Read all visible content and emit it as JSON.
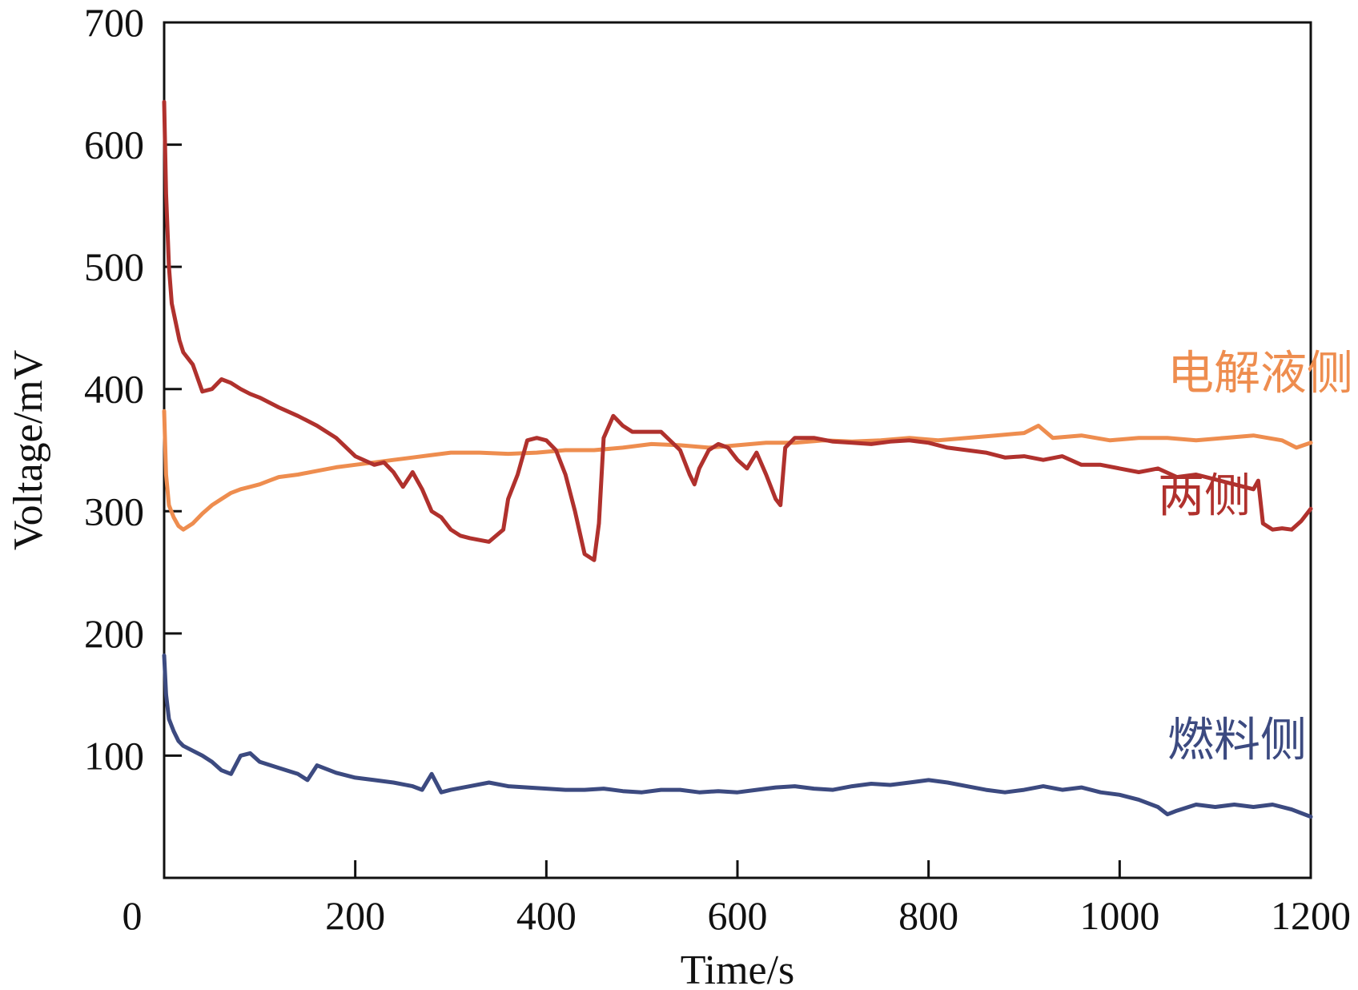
{
  "chart_data": {
    "type": "line",
    "title": "",
    "xlabel": "Time/s",
    "ylabel": "Voltage/mV",
    "xlim": [
      0,
      1200
    ],
    "ylim": [
      0,
      700
    ],
    "xticks": [
      0,
      200,
      400,
      600,
      800,
      1000,
      1200
    ],
    "yticks": [
      100,
      200,
      300,
      400,
      500,
      600,
      700
    ],
    "grid": false,
    "legend": "inline labels",
    "series": [
      {
        "name": "电解液侧",
        "color": "#ee8d4f",
        "label_at": [
          1050,
          400
        ],
        "x": [
          0,
          2,
          5,
          10,
          15,
          20,
          30,
          40,
          50,
          60,
          70,
          80,
          90,
          100,
          110,
          120,
          140,
          160,
          180,
          200,
          220,
          240,
          260,
          280,
          300,
          330,
          360,
          390,
          420,
          450,
          480,
          510,
          540,
          570,
          600,
          630,
          660,
          690,
          720,
          750,
          780,
          810,
          840,
          870,
          900,
          915,
          930,
          960,
          990,
          1020,
          1050,
          1080,
          1110,
          1140,
          1170,
          1185,
          1200
        ],
        "y": [
          382,
          330,
          305,
          295,
          288,
          285,
          290,
          298,
          305,
          310,
          315,
          318,
          320,
          322,
          325,
          328,
          330,
          333,
          336,
          338,
          340,
          342,
          344,
          346,
          348,
          348,
          347,
          348,
          350,
          350,
          352,
          355,
          354,
          352,
          354,
          356,
          356,
          358,
          357,
          358,
          360,
          358,
          360,
          362,
          364,
          370,
          360,
          362,
          358,
          360,
          360,
          358,
          360,
          362,
          358,
          352,
          356
        ]
      },
      {
        "name": "两侧",
        "color": "#b0312d",
        "label_at": [
          1040,
          300
        ],
        "x": [
          0,
          2,
          5,
          8,
          12,
          16,
          20,
          30,
          40,
          50,
          60,
          70,
          80,
          90,
          100,
          120,
          140,
          160,
          180,
          200,
          220,
          230,
          240,
          250,
          260,
          270,
          280,
          290,
          300,
          310,
          320,
          340,
          355,
          360,
          370,
          380,
          390,
          400,
          410,
          420,
          430,
          440,
          450,
          455,
          460,
          470,
          480,
          490,
          500,
          520,
          540,
          550,
          555,
          560,
          570,
          580,
          590,
          600,
          610,
          620,
          630,
          640,
          645,
          650,
          660,
          680,
          700,
          720,
          740,
          760,
          780,
          800,
          820,
          840,
          860,
          880,
          900,
          920,
          940,
          960,
          980,
          1000,
          1020,
          1040,
          1060,
          1080,
          1100,
          1120,
          1140,
          1145,
          1150,
          1160,
          1170,
          1180,
          1190,
          1200
        ],
        "y": [
          635,
          560,
          500,
          470,
          455,
          440,
          430,
          420,
          398,
          400,
          408,
          405,
          400,
          396,
          393,
          385,
          378,
          370,
          360,
          345,
          338,
          340,
          332,
          320,
          332,
          318,
          300,
          295,
          285,
          280,
          278,
          275,
          285,
          310,
          330,
          358,
          360,
          358,
          350,
          330,
          300,
          265,
          260,
          290,
          360,
          378,
          370,
          365,
          365,
          365,
          350,
          330,
          322,
          335,
          350,
          355,
          352,
          342,
          335,
          348,
          330,
          310,
          305,
          352,
          360,
          360,
          357,
          356,
          355,
          357,
          358,
          356,
          352,
          350,
          348,
          344,
          345,
          342,
          345,
          338,
          338,
          335,
          332,
          335,
          328,
          330,
          326,
          322,
          318,
          325,
          290,
          285,
          286,
          285,
          292,
          302
        ]
      },
      {
        "name": "燃料侧",
        "color": "#3c4a80",
        "label_at": [
          1050,
          100
        ],
        "x": [
          0,
          2,
          5,
          10,
          15,
          20,
          30,
          40,
          50,
          60,
          70,
          80,
          90,
          100,
          120,
          140,
          150,
          160,
          180,
          200,
          220,
          240,
          260,
          270,
          280,
          290,
          300,
          320,
          340,
          360,
          380,
          400,
          420,
          440,
          460,
          480,
          500,
          520,
          540,
          560,
          580,
          600,
          620,
          640,
          660,
          680,
          700,
          720,
          740,
          760,
          780,
          800,
          820,
          840,
          860,
          880,
          900,
          920,
          940,
          960,
          980,
          1000,
          1020,
          1040,
          1050,
          1060,
          1080,
          1100,
          1120,
          1140,
          1160,
          1180,
          1200
        ],
        "y": [
          182,
          150,
          130,
          120,
          112,
          108,
          104,
          100,
          95,
          88,
          85,
          100,
          102,
          95,
          90,
          85,
          80,
          92,
          86,
          82,
          80,
          78,
          75,
          72,
          85,
          70,
          72,
          75,
          78,
          75,
          74,
          73,
          72,
          72,
          73,
          71,
          70,
          72,
          72,
          70,
          71,
          70,
          72,
          74,
          75,
          73,
          72,
          75,
          77,
          76,
          78,
          80,
          78,
          75,
          72,
          70,
          72,
          75,
          72,
          74,
          70,
          68,
          64,
          58,
          52,
          55,
          60,
          58,
          60,
          58,
          60,
          56,
          50
        ]
      }
    ]
  }
}
